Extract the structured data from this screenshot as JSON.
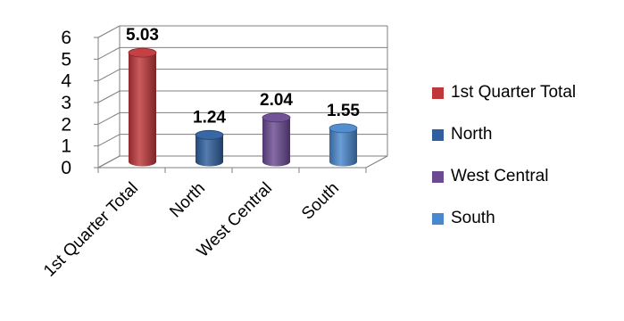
{
  "chart_data": {
    "type": "bar",
    "style": "3d-cylinder",
    "categories": [
      "1st Quarter Total",
      "North",
      "West Central",
      "South"
    ],
    "values": [
      5.03,
      1.24,
      2.04,
      1.55
    ],
    "data_labels": [
      "5.03",
      "1.24",
      "2.04",
      "1.55"
    ],
    "colors": [
      "#C0373A",
      "#2F5F9E",
      "#6B4A92",
      "#4A88CE"
    ],
    "ylim": [
      0,
      6
    ],
    "yticks": [
      "0",
      "1",
      "2",
      "3",
      "4",
      "5",
      "6"
    ],
    "grid": true,
    "legend_position": "right",
    "legend": [
      {
        "label": "1st Quarter Total",
        "color": "#C0373A"
      },
      {
        "label": "North",
        "color": "#2F5F9E"
      },
      {
        "label": "West Central",
        "color": "#6B4A92"
      },
      {
        "label": "South",
        "color": "#4A88CE"
      }
    ]
  }
}
